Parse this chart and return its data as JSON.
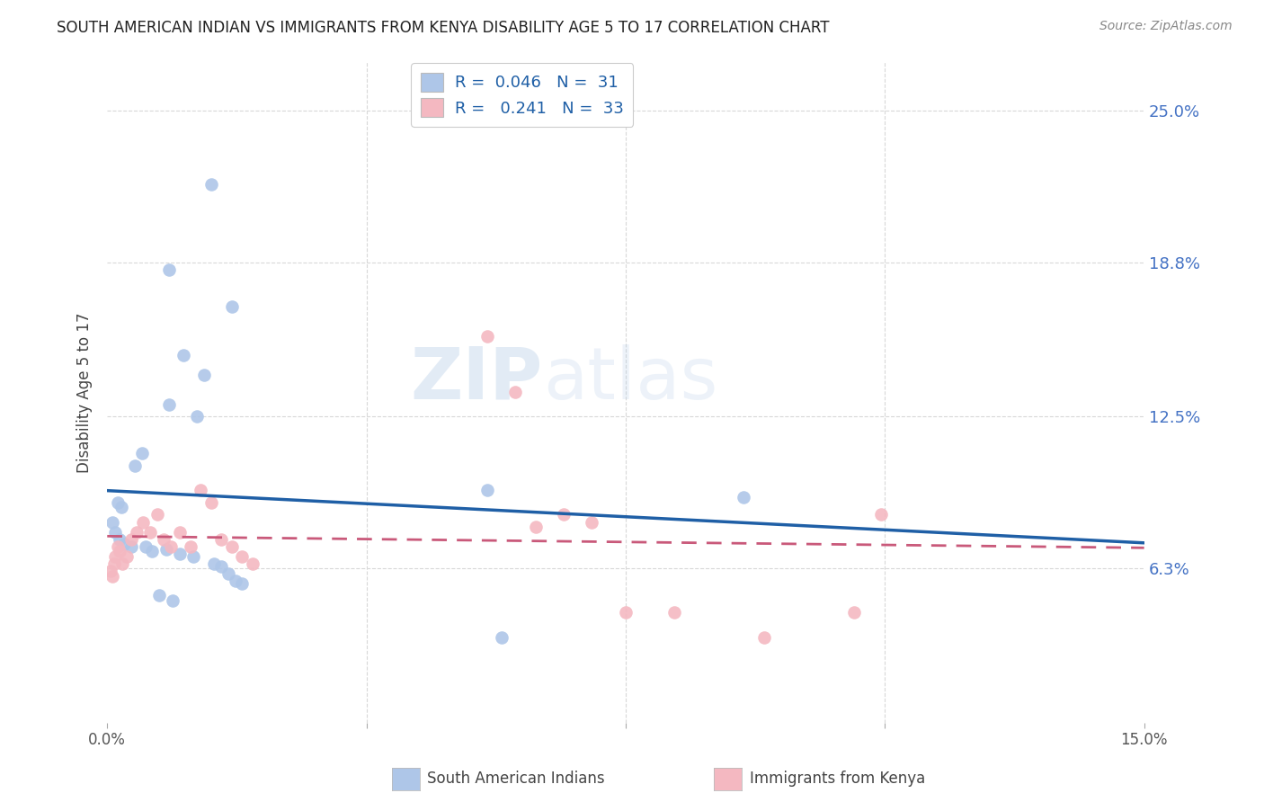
{
  "title": "SOUTH AMERICAN INDIAN VS IMMIGRANTS FROM KENYA DISABILITY AGE 5 TO 17 CORRELATION CHART",
  "source": "Source: ZipAtlas.com",
  "ylabel": "Disability Age 5 to 17",
  "ytick_values": [
    6.3,
    12.5,
    18.8,
    25.0
  ],
  "ytick_labels": [
    "6.3%",
    "12.5%",
    "18.8%",
    "25.0%"
  ],
  "xlim": [
    0.0,
    15.0
  ],
  "ylim": [
    0.0,
    27.0
  ],
  "legend_blue_r": "0.046",
  "legend_blue_n": "31",
  "legend_pink_r": "0.241",
  "legend_pink_n": "33",
  "legend_label_blue": "South American Indians",
  "legend_label_pink": "Immigrants from Kenya",
  "blue_color": "#aec6e8",
  "pink_color": "#f4b8c1",
  "blue_line_color": "#1f5fa6",
  "pink_line_color": "#c9597a",
  "blue_scatter": [
    [
      1.5,
      22.0
    ],
    [
      0.9,
      18.5
    ],
    [
      1.8,
      17.0
    ],
    [
      1.1,
      15.0
    ],
    [
      1.4,
      14.2
    ],
    [
      0.9,
      13.0
    ],
    [
      1.3,
      12.5
    ],
    [
      0.5,
      11.0
    ],
    [
      0.4,
      10.5
    ],
    [
      0.15,
      9.0
    ],
    [
      0.2,
      8.8
    ],
    [
      0.08,
      8.2
    ],
    [
      0.12,
      7.8
    ],
    [
      0.18,
      7.5
    ],
    [
      0.25,
      7.3
    ],
    [
      0.35,
      7.2
    ],
    [
      0.55,
      7.2
    ],
    [
      0.65,
      7.0
    ],
    [
      0.85,
      7.1
    ],
    [
      1.05,
      6.9
    ],
    [
      1.25,
      6.8
    ],
    [
      1.55,
      6.5
    ],
    [
      1.65,
      6.4
    ],
    [
      1.75,
      6.1
    ],
    [
      1.85,
      5.8
    ],
    [
      1.95,
      5.7
    ],
    [
      0.75,
      5.2
    ],
    [
      0.95,
      5.0
    ],
    [
      5.5,
      9.5
    ],
    [
      9.2,
      9.2
    ],
    [
      5.7,
      3.5
    ]
  ],
  "pink_scatter": [
    [
      0.05,
      6.2
    ],
    [
      0.08,
      6.0
    ],
    [
      0.1,
      6.5
    ],
    [
      0.12,
      6.8
    ],
    [
      0.15,
      7.2
    ],
    [
      0.18,
      7.0
    ],
    [
      0.22,
      6.5
    ],
    [
      0.28,
      6.8
    ],
    [
      0.35,
      7.5
    ],
    [
      0.42,
      7.8
    ],
    [
      0.52,
      8.2
    ],
    [
      0.62,
      7.8
    ],
    [
      0.72,
      8.5
    ],
    [
      0.82,
      7.5
    ],
    [
      0.92,
      7.2
    ],
    [
      1.05,
      7.8
    ],
    [
      1.2,
      7.2
    ],
    [
      1.35,
      9.5
    ],
    [
      1.5,
      9.0
    ],
    [
      1.65,
      7.5
    ],
    [
      1.8,
      7.2
    ],
    [
      1.95,
      6.8
    ],
    [
      2.1,
      6.5
    ],
    [
      5.5,
      15.8
    ],
    [
      5.9,
      13.5
    ],
    [
      6.2,
      8.0
    ],
    [
      6.6,
      8.5
    ],
    [
      7.0,
      8.2
    ],
    [
      7.5,
      4.5
    ],
    [
      8.2,
      4.5
    ],
    [
      9.5,
      3.5
    ],
    [
      10.8,
      4.5
    ],
    [
      11.2,
      8.5
    ]
  ],
  "watermark_zip": "ZIP",
  "watermark_atlas": "atlas",
  "background_color": "#ffffff",
  "grid_color": "#d8d8d8",
  "title_fontsize": 12,
  "source_fontsize": 10
}
